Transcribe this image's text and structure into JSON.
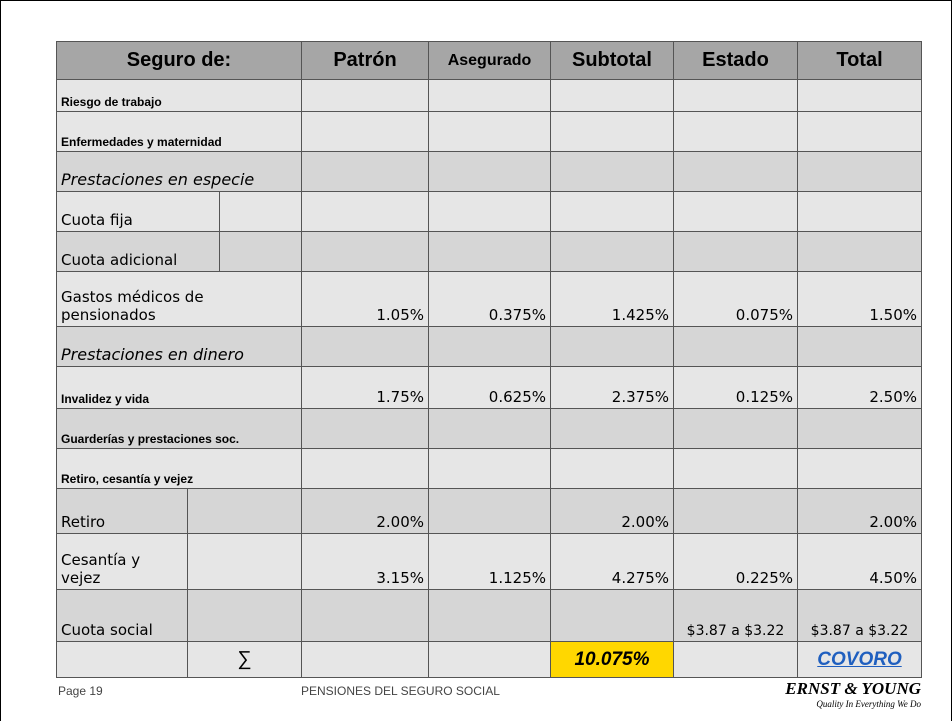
{
  "table": {
    "header": [
      "Seguro de:",
      "Patrón",
      "Asegurado",
      "Subtotal",
      "Estado",
      "Total"
    ],
    "rows": [
      {
        "label": "Riesgo de trabajo",
        "values": [
          null,
          null,
          null,
          null,
          null
        ]
      },
      {
        "label": "Enfermedades y maternidad",
        "values": [
          null,
          null,
          null,
          null,
          null
        ]
      },
      {
        "label": "Prestaciones en especie",
        "values": [
          null,
          null,
          null,
          null,
          null
        ]
      },
      {
        "label": "Cuota fija",
        "values": [
          null,
          null,
          null,
          null,
          null
        ]
      },
      {
        "label": "Cuota adicional",
        "values": [
          null,
          null,
          null,
          null,
          null
        ]
      },
      {
        "label": "Gastos médicos de pensionados",
        "values": [
          "1.05%",
          "0.375%",
          "1.425%",
          "0.075%",
          "1.50%"
        ]
      },
      {
        "label": "Prestaciones en dinero",
        "values": [
          null,
          null,
          null,
          null,
          null
        ]
      },
      {
        "label": "Invalidez y vida",
        "values": [
          "1.75%",
          "0.625%",
          "2.375%",
          "0.125%",
          "2.50%"
        ]
      },
      {
        "label": "Guarderías y prestaciones soc.",
        "values": [
          null,
          null,
          null,
          null,
          null
        ]
      },
      {
        "label": "Retiro, cesantía y vejez",
        "values": [
          null,
          null,
          null,
          null,
          null
        ]
      },
      {
        "label": "Retiro",
        "values": [
          "2.00%",
          null,
          "2.00%",
          null,
          "2.00%"
        ]
      },
      {
        "label": "Cesantía y vejez",
        "values": [
          "3.15%",
          "1.125%",
          "4.275%",
          "0.225%",
          "4.50%"
        ]
      },
      {
        "label": "Cuota social",
        "values": [
          null,
          null,
          null,
          "$3.87 a $3.22",
          "$3.87 a $3.22"
        ]
      },
      {
        "symbol": "∑",
        "values": [
          null,
          null,
          "10.075%",
          null,
          "COVORO"
        ]
      }
    ]
  },
  "footer": {
    "page": "Page 19",
    "title": "PENSIONES DEL SEGURO SOCIAL",
    "logo": "ERNST & YOUNG",
    "tagline": "Quality In Everything We Do"
  }
}
